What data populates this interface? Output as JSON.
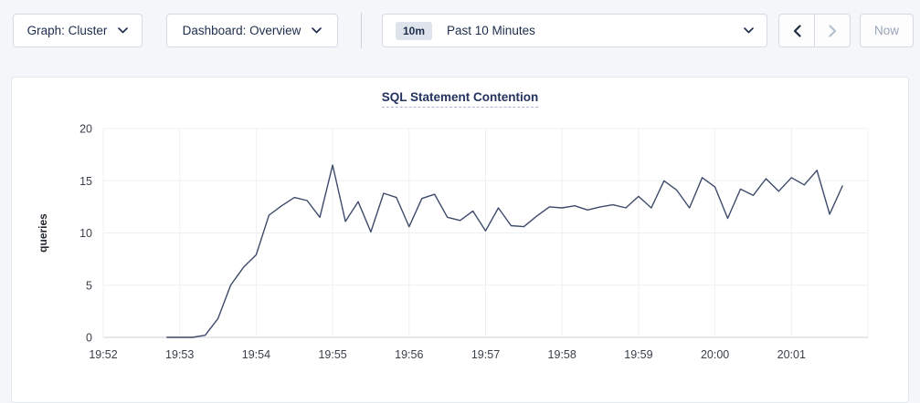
{
  "header": {
    "graph_dropdown": {
      "label": "Graph: Cluster"
    },
    "dashboard_dropdown": {
      "label": "Dashboard: Overview"
    },
    "time_picker": {
      "range_badge": "10m",
      "label": "Past 10 Minutes"
    },
    "now_button_label": "Now"
  },
  "chart_data": {
    "type": "line",
    "title": "SQL Statement Contention",
    "ylabel": "queries",
    "ylim": [
      0,
      20
    ],
    "yticks": [
      0,
      5,
      10,
      15,
      20
    ],
    "x_tick_labels": [
      "19:52",
      "19:53",
      "19:54",
      "19:55",
      "19:56",
      "19:57",
      "19:58",
      "19:59",
      "20:00",
      "20:01"
    ],
    "grid": true,
    "legend": "none",
    "series": [
      {
        "name": "queries",
        "color": "#3e4a6b",
        "start_time": "19:52:50",
        "interval_seconds": 10,
        "values": [
          0,
          0,
          0,
          0.2,
          1.8,
          5.0,
          6.7,
          7.9,
          11.7,
          12.6,
          13.4,
          13.1,
          11.5,
          16.5,
          11.1,
          13.0,
          10.1,
          13.8,
          13.4,
          10.6,
          13.3,
          13.7,
          11.5,
          11.2,
          12.1,
          10.2,
          12.4,
          10.7,
          10.6,
          11.6,
          12.5,
          12.4,
          12.6,
          12.2,
          12.5,
          12.7,
          12.4,
          13.5,
          12.4,
          15.0,
          14.1,
          12.4,
          15.3,
          14.4,
          11.4,
          14.2,
          13.6,
          15.2,
          14.0,
          15.3,
          14.6,
          16.0,
          11.8,
          14.5
        ]
      }
    ]
  },
  "colors": {
    "page_bg": "#f4f6fa",
    "card_bg": "#ffffff",
    "card_border": "#e3e7ee",
    "control_border": "#d5dae4",
    "text_primary": "#1d2c4c",
    "title": "#24335f",
    "badge_bg": "#dfe3ec",
    "disabled": "#b6bfce",
    "grid_line": "#eef0f3",
    "axis_text": "#3a4049",
    "line": "#3e4a6b"
  }
}
